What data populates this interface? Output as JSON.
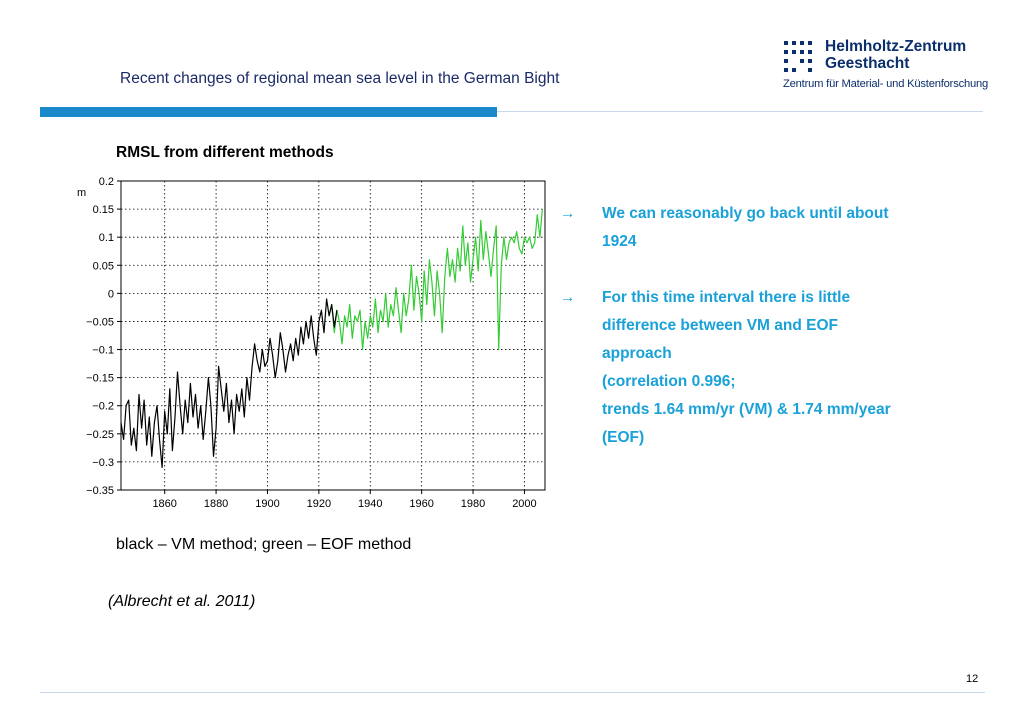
{
  "slide": {
    "title": "Recent changes of regional mean sea level in the German Bight",
    "subheading": "RMSL from different methods",
    "caption": "black – VM method; green – EOF method",
    "citation": "(Albrecht et al. 2011)",
    "page_number": "12"
  },
  "logo": {
    "name_line1": "Helmholtz-Zentrum",
    "name_line2": "Geesthacht",
    "subtitle": "Zentrum für Material- und Küstenforschung",
    "color": "#0b2f6b",
    "icon": "helmholtz-dot-grid-icon"
  },
  "bullets": [
    {
      "icon": "arrow-right-icon",
      "lines": [
        "We can reasonably go back until about",
        "1924"
      ]
    },
    {
      "icon": "arrow-right-icon",
      "lines": [
        "For this time interval there is little",
        "difference between VM and EOF",
        "approach",
        "(correlation 0.996;",
        "trends 1.64 mm/yr (VM) & 1.74 mm/year",
        "(EOF)"
      ]
    }
  ],
  "colors": {
    "accent_blue": "#1a88c9",
    "bullet_text": "#19a1d8",
    "vm_series": "#000000",
    "eof_series": "#33cc33"
  },
  "chart_data": {
    "type": "line",
    "title": "",
    "xlabel": "",
    "ylabel": "m",
    "xlim": [
      1843,
      2008
    ],
    "ylim": [
      -0.35,
      0.2
    ],
    "xticks": [
      1860,
      1880,
      1900,
      1920,
      1940,
      1960,
      1980,
      2000
    ],
    "yticks": [
      0.2,
      0.15,
      0.1,
      0.05,
      0,
      -0.05,
      -0.1,
      -0.15,
      -0.2,
      -0.25,
      -0.3,
      -0.35
    ],
    "ytick_labels": [
      "0.2",
      "0.15",
      "0.1",
      "0.05",
      "0",
      "−0.05",
      "−0.1",
      "−0.15",
      "−0.2",
      "−0.25",
      "−0.3",
      "−0.35"
    ],
    "grid": true,
    "series": [
      {
        "color": "#000000",
        "x": [
          1843,
          1844,
          1845,
          1846,
          1847,
          1848,
          1849,
          1850,
          1851,
          1852,
          1853,
          1854,
          1855,
          1856,
          1857,
          1858,
          1859,
          1860,
          1861,
          1862,
          1863,
          1864,
          1865,
          1866,
          1867,
          1868,
          1869,
          1870,
          1871,
          1872,
          1873,
          1874,
          1875,
          1876,
          1877,
          1878,
          1879,
          1880,
          1881,
          1882,
          1883,
          1884,
          1885,
          1886,
          1887,
          1888,
          1889,
          1890,
          1891,
          1892,
          1893,
          1894,
          1895,
          1896,
          1897,
          1898,
          1899,
          1900,
          1901,
          1902,
          1903,
          1904,
          1905,
          1906,
          1907,
          1908,
          1909,
          1910,
          1911,
          1912,
          1913,
          1914,
          1915,
          1916,
          1917,
          1918,
          1919,
          1920,
          1921,
          1922,
          1923,
          1924,
          1925,
          1926,
          1927
        ],
        "y": [
          -0.23,
          -0.26,
          -0.2,
          -0.19,
          -0.27,
          -0.24,
          -0.28,
          -0.18,
          -0.24,
          -0.19,
          -0.27,
          -0.22,
          -0.29,
          -0.23,
          -0.2,
          -0.26,
          -0.31,
          -0.21,
          -0.25,
          -0.17,
          -0.28,
          -0.22,
          -0.14,
          -0.2,
          -0.25,
          -0.19,
          -0.23,
          -0.16,
          -0.22,
          -0.18,
          -0.24,
          -0.2,
          -0.26,
          -0.21,
          -0.15,
          -0.2,
          -0.29,
          -0.24,
          -0.13,
          -0.17,
          -0.21,
          -0.16,
          -0.23,
          -0.19,
          -0.25,
          -0.18,
          -0.21,
          -0.17,
          -0.22,
          -0.15,
          -0.19,
          -0.13,
          -0.09,
          -0.12,
          -0.14,
          -0.1,
          -0.13,
          -0.12,
          -0.08,
          -0.11,
          -0.15,
          -0.12,
          -0.07,
          -0.1,
          -0.14,
          -0.11,
          -0.09,
          -0.12,
          -0.08,
          -0.11,
          -0.06,
          -0.09,
          -0.05,
          -0.08,
          -0.04,
          -0.08,
          -0.11,
          -0.05,
          -0.03,
          -0.07,
          -0.01,
          -0.04,
          -0.02,
          -0.06,
          -0.03
        ]
      },
      {
        "color": "#33cc33",
        "x": [
          1924,
          1925,
          1926,
          1927,
          1928,
          1929,
          1930,
          1931,
          1932,
          1933,
          1934,
          1935,
          1936,
          1937,
          1938,
          1939,
          1940,
          1941,
          1942,
          1943,
          1944,
          1945,
          1946,
          1947,
          1948,
          1949,
          1950,
          1951,
          1952,
          1953,
          1954,
          1955,
          1956,
          1957,
          1958,
          1959,
          1960,
          1961,
          1962,
          1963,
          1964,
          1965,
          1966,
          1967,
          1968,
          1969,
          1970,
          1971,
          1972,
          1973,
          1974,
          1975,
          1976,
          1977,
          1978,
          1979,
          1980,
          1981,
          1982,
          1983,
          1984,
          1985,
          1986,
          1987,
          1988,
          1989,
          1990,
          1991,
          1992,
          1993,
          1994,
          1995,
          1996,
          1997,
          1998,
          1999,
          2000,
          2001,
          2002,
          2003,
          2004,
          2005,
          2006,
          2007
        ],
        "y": [
          -0.04,
          -0.02,
          -0.07,
          -0.03,
          -0.05,
          -0.09,
          -0.04,
          -0.06,
          -0.02,
          -0.08,
          -0.04,
          -0.05,
          -0.03,
          -0.1,
          -0.05,
          -0.08,
          -0.04,
          -0.06,
          -0.01,
          -0.07,
          -0.03,
          -0.05,
          0.0,
          -0.06,
          -0.02,
          -0.04,
          0.01,
          -0.03,
          -0.07,
          0.0,
          -0.04,
          -0.01,
          0.05,
          -0.03,
          0.03,
          0.0,
          -0.05,
          0.04,
          -0.02,
          0.06,
          0.02,
          -0.04,
          0.04,
          0.0,
          -0.07,
          0.03,
          0.08,
          0.03,
          0.06,
          0.02,
          0.08,
          0.04,
          0.12,
          0.05,
          0.09,
          0.02,
          0.06,
          0.1,
          0.04,
          0.13,
          0.06,
          0.11,
          0.07,
          0.03,
          0.08,
          0.12,
          -0.1,
          0.05,
          0.1,
          0.06,
          0.09,
          0.1,
          0.09,
          0.11,
          0.08,
          0.07,
          0.1,
          0.09,
          0.1,
          0.08,
          0.09,
          0.14,
          0.1,
          0.15
        ]
      }
    ]
  }
}
